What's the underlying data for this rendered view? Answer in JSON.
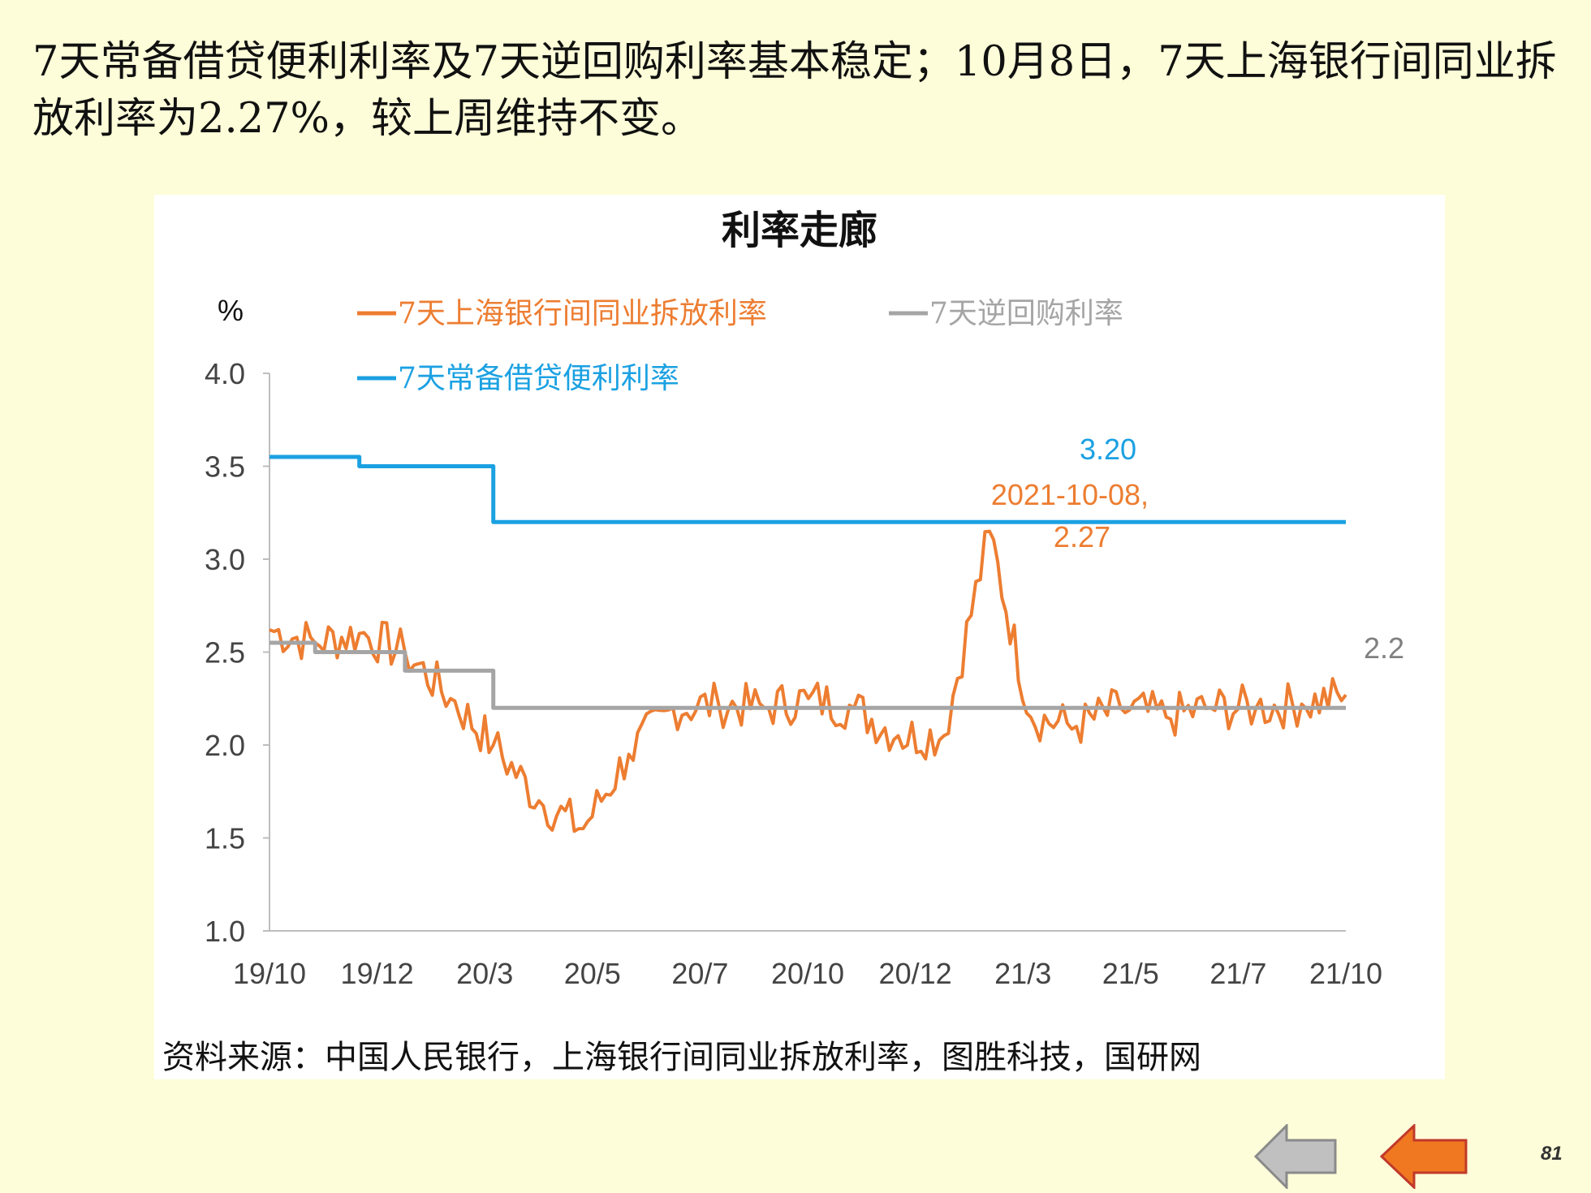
{
  "headline": "7天常备借贷便利利率及7天逆回购利率基本稳定；10月8日，7天上海银行间同业拆放利率为2.27%，较上周维持不变。",
  "source": "资料来源：中国人民银行，上海银行间同业拆放利率，图胜科技，国研网",
  "page_number": "81",
  "nav": {
    "back_icon": "arrow-left-gray-icon",
    "prev_icon": "arrow-left-orange-icon"
  },
  "chart_data": {
    "type": "line",
    "title": "利率走廊",
    "ylabel": "%",
    "xlabel": "",
    "ylim": [
      1.0,
      4.0
    ],
    "yticks": [
      "1.0",
      "1.5",
      "2.0",
      "2.5",
      "3.0",
      "3.5",
      "4.0"
    ],
    "xticks": [
      "19/10",
      "19/12",
      "20/3",
      "20/5",
      "20/7",
      "20/10",
      "20/12",
      "21/3",
      "21/5",
      "21/7",
      "21/10"
    ],
    "x_range": [
      "2019-10",
      "2021-10"
    ],
    "grid": false,
    "legend_placement": "top",
    "series": [
      {
        "name": "7天上海银行间同业拆放利率",
        "color": "#ed7d31",
        "x": [
          "2019-10",
          "2019-11",
          "2019-12",
          "2020-01",
          "2020-02",
          "2020-03",
          "2020-04",
          "2020-05",
          "2020-06",
          "2020-07",
          "2020-08",
          "2020-09",
          "2020-10",
          "2020-11",
          "2020-12",
          "2021-01",
          "2021-02",
          "2021-03",
          "2021-04",
          "2021-05",
          "2021-06",
          "2021-07",
          "2021-08",
          "2021-09",
          "2021-10"
        ],
        "values": [
          2.62,
          2.55,
          2.6,
          2.5,
          2.25,
          2.0,
          1.7,
          1.55,
          1.95,
          2.2,
          2.22,
          2.2,
          2.25,
          2.2,
          2.05,
          2.05,
          3.15,
          2.15,
          2.1,
          2.2,
          2.15,
          2.2,
          2.2,
          2.22,
          2.27
        ]
      },
      {
        "name": "7天逆回购利率",
        "color": "#a5a5a5",
        "x": [
          "2019-10",
          "2019-11",
          "2020-01",
          "2020-03",
          "2021-10"
        ],
        "values": [
          2.55,
          2.5,
          2.4,
          2.2,
          2.2
        ]
      },
      {
        "name": "7天常备借贷便利利率",
        "color": "#1ba1e2",
        "x": [
          "2019-10",
          "2019-12",
          "2020-03",
          "2021-10"
        ],
        "values": [
          3.55,
          3.5,
          3.2,
          3.2
        ]
      }
    ],
    "annotations": [
      {
        "text": "3.20",
        "color": "#1ba1e2"
      },
      {
        "text": "2021-10-08,",
        "color": "#ed7d31"
      },
      {
        "text": "2.27",
        "color": "#ed7d31"
      },
      {
        "text": "2.2",
        "color": "#808080"
      }
    ]
  }
}
